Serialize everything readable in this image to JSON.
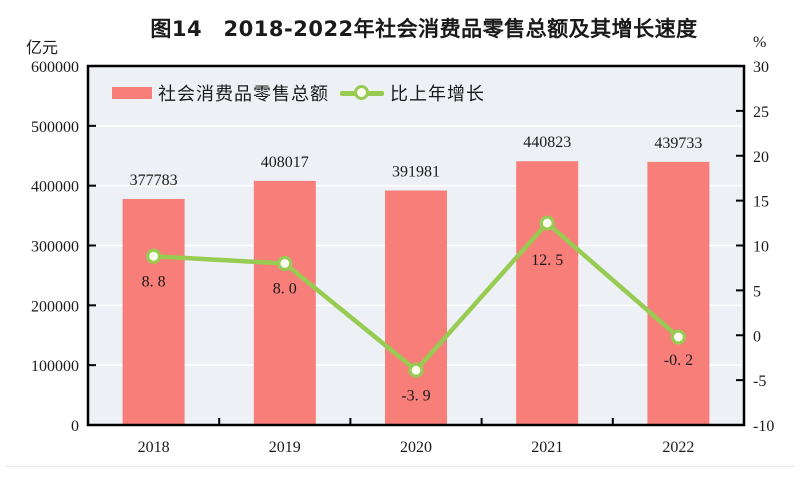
{
  "page": {
    "title": "图14　2018-2022年社会消费品零售总额及其增长速度",
    "left_axis_unit": "亿元",
    "right_axis_unit": "%"
  },
  "legend": {
    "bar_label": "社会消费品零售总额",
    "line_label": "比上年增长"
  },
  "chart_data": {
    "type": "bar",
    "title": "图14　2018-2022年社会消费品零售总额及其增长速度",
    "categories": [
      "2018",
      "2019",
      "2020",
      "2021",
      "2022"
    ],
    "series": [
      {
        "name": "社会消费品零售总额",
        "type": "bar",
        "axis": "left",
        "unit": "亿元",
        "values": [
          377783,
          408017,
          391981,
          440823,
          439733
        ],
        "labels": [
          "377783",
          "408017",
          "391981",
          "440823",
          "439733"
        ],
        "color": "#f87e7a"
      },
      {
        "name": "比上年增长",
        "type": "line",
        "axis": "right",
        "unit": "%",
        "values": [
          8.8,
          8.0,
          -3.9,
          12.5,
          -0.2
        ],
        "labels": [
          "8. 8",
          "8. 0",
          "-3. 9",
          "12. 5",
          "-0. 2"
        ],
        "label_dy": [
          30,
          30,
          30,
          42,
          28
        ],
        "color": "#97cb52"
      }
    ],
    "left_axis": {
      "label": "亿元",
      "min": 0,
      "max": 600000,
      "tick_step": 100000,
      "ticks": [
        "0",
        "100000",
        "200000",
        "300000",
        "400000",
        "500000",
        "600000"
      ]
    },
    "right_axis": {
      "label": "%",
      "min": -10,
      "max": 30,
      "tick_step": 5,
      "ticks": [
        "-10",
        "-5",
        "0",
        "5",
        "10",
        "15",
        "20",
        "25",
        "30"
      ]
    },
    "grid": true,
    "legend_position": "top-left-inside",
    "colors": {
      "plot_bg": "#edf1f6",
      "grid": "#ffffff",
      "marker_fill": "#fdfdf2",
      "axis": "#000000",
      "text": "#1a1a1a"
    }
  }
}
